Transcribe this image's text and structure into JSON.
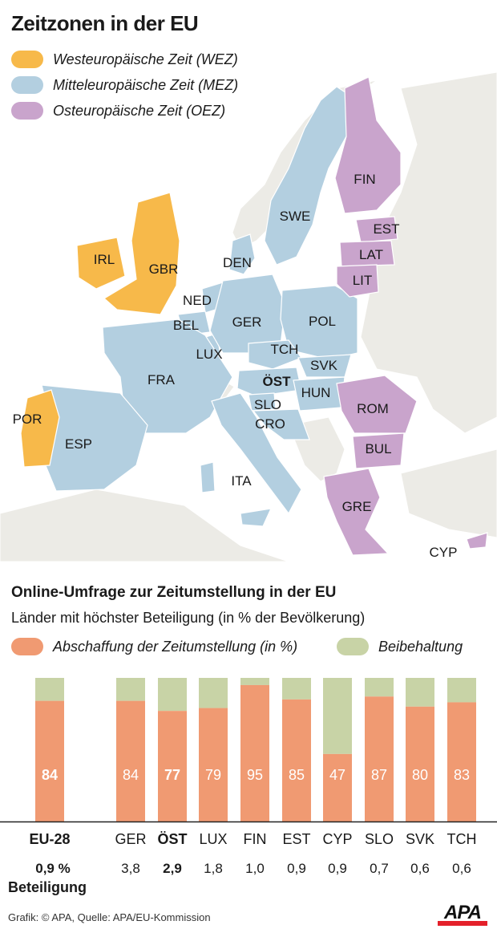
{
  "map": {
    "title": "Zeitzonen in der EU",
    "legend": [
      {
        "label": "Westeuropäische Zeit (WEZ)",
        "color": "#f7b94a"
      },
      {
        "label": "Mitteleuropäische Zeit (MEZ)",
        "color": "#b3cfe0"
      },
      {
        "label": "Osteuropäische Zeit (OEZ)",
        "color": "#c9a4cc"
      }
    ],
    "countries": [
      {
        "code": "FIN",
        "zone": "OEZ"
      },
      {
        "code": "SWE",
        "zone": "MEZ"
      },
      {
        "code": "EST",
        "zone": "OEZ"
      },
      {
        "code": "LAT",
        "zone": "OEZ"
      },
      {
        "code": "LIT",
        "zone": "OEZ"
      },
      {
        "code": "IRL",
        "zone": "WEZ"
      },
      {
        "code": "GBR",
        "zone": "WEZ"
      },
      {
        "code": "DEN",
        "zone": "MEZ"
      },
      {
        "code": "NED",
        "zone": "MEZ"
      },
      {
        "code": "BEL",
        "zone": "MEZ"
      },
      {
        "code": "GER",
        "zone": "MEZ"
      },
      {
        "code": "POL",
        "zone": "MEZ"
      },
      {
        "code": "LUX",
        "zone": "MEZ"
      },
      {
        "code": "TCH",
        "zone": "MEZ"
      },
      {
        "code": "SVK",
        "zone": "MEZ"
      },
      {
        "code": "FRA",
        "zone": "MEZ"
      },
      {
        "code": "ÖST",
        "zone": "MEZ"
      },
      {
        "code": "HUN",
        "zone": "MEZ"
      },
      {
        "code": "SLO",
        "zone": "MEZ"
      },
      {
        "code": "CRO",
        "zone": "MEZ"
      },
      {
        "code": "ROM",
        "zone": "OEZ"
      },
      {
        "code": "POR",
        "zone": "WEZ"
      },
      {
        "code": "ESP",
        "zone": "MEZ"
      },
      {
        "code": "BUL",
        "zone": "OEZ"
      },
      {
        "code": "ITA",
        "zone": "MEZ"
      },
      {
        "code": "GRE",
        "zone": "OEZ"
      },
      {
        "code": "CYP",
        "zone": "OEZ"
      }
    ]
  },
  "chart_data": {
    "type": "bar",
    "stacked": true,
    "title": "Online-Umfrage zur Zeitumstellung in der EU",
    "subtitle": "Länder mit höchster Beteiligung (in % der Bevölkerung)",
    "ylim": [
      0,
      100
    ],
    "categories": [
      "EU-28",
      "GER",
      "ÖST",
      "LUX",
      "FIN",
      "EST",
      "CYP",
      "SLO",
      "SVK",
      "TCH"
    ],
    "series": [
      {
        "name": "Abschaffung der Zeitumstellung (in %)",
        "color": "#f09a72",
        "values": [
          84,
          84,
          77,
          79,
          95,
          85,
          47,
          87,
          80,
          83
        ]
      },
      {
        "name": "Beibehaltung",
        "color": "#c8d3a6",
        "values": [
          16,
          16,
          23,
          21,
          5,
          15,
          53,
          13,
          20,
          17
        ]
      }
    ],
    "data_labels": [
      "84",
      "84",
      "77",
      "79",
      "95",
      "85",
      "47",
      "87",
      "80",
      "83"
    ],
    "participation": [
      "0,9 %",
      "3,8",
      "2,9",
      "1,8",
      "1,0",
      "0,9",
      "0,9",
      "0,7",
      "0,6",
      "0,6"
    ],
    "participation_label": "Beteiligung",
    "emphasized": [
      "EU-28",
      "ÖST"
    ]
  },
  "footer": {
    "credit": "Grafik: © APA, Quelle: APA/EU-Kommission",
    "logo": "APA"
  }
}
